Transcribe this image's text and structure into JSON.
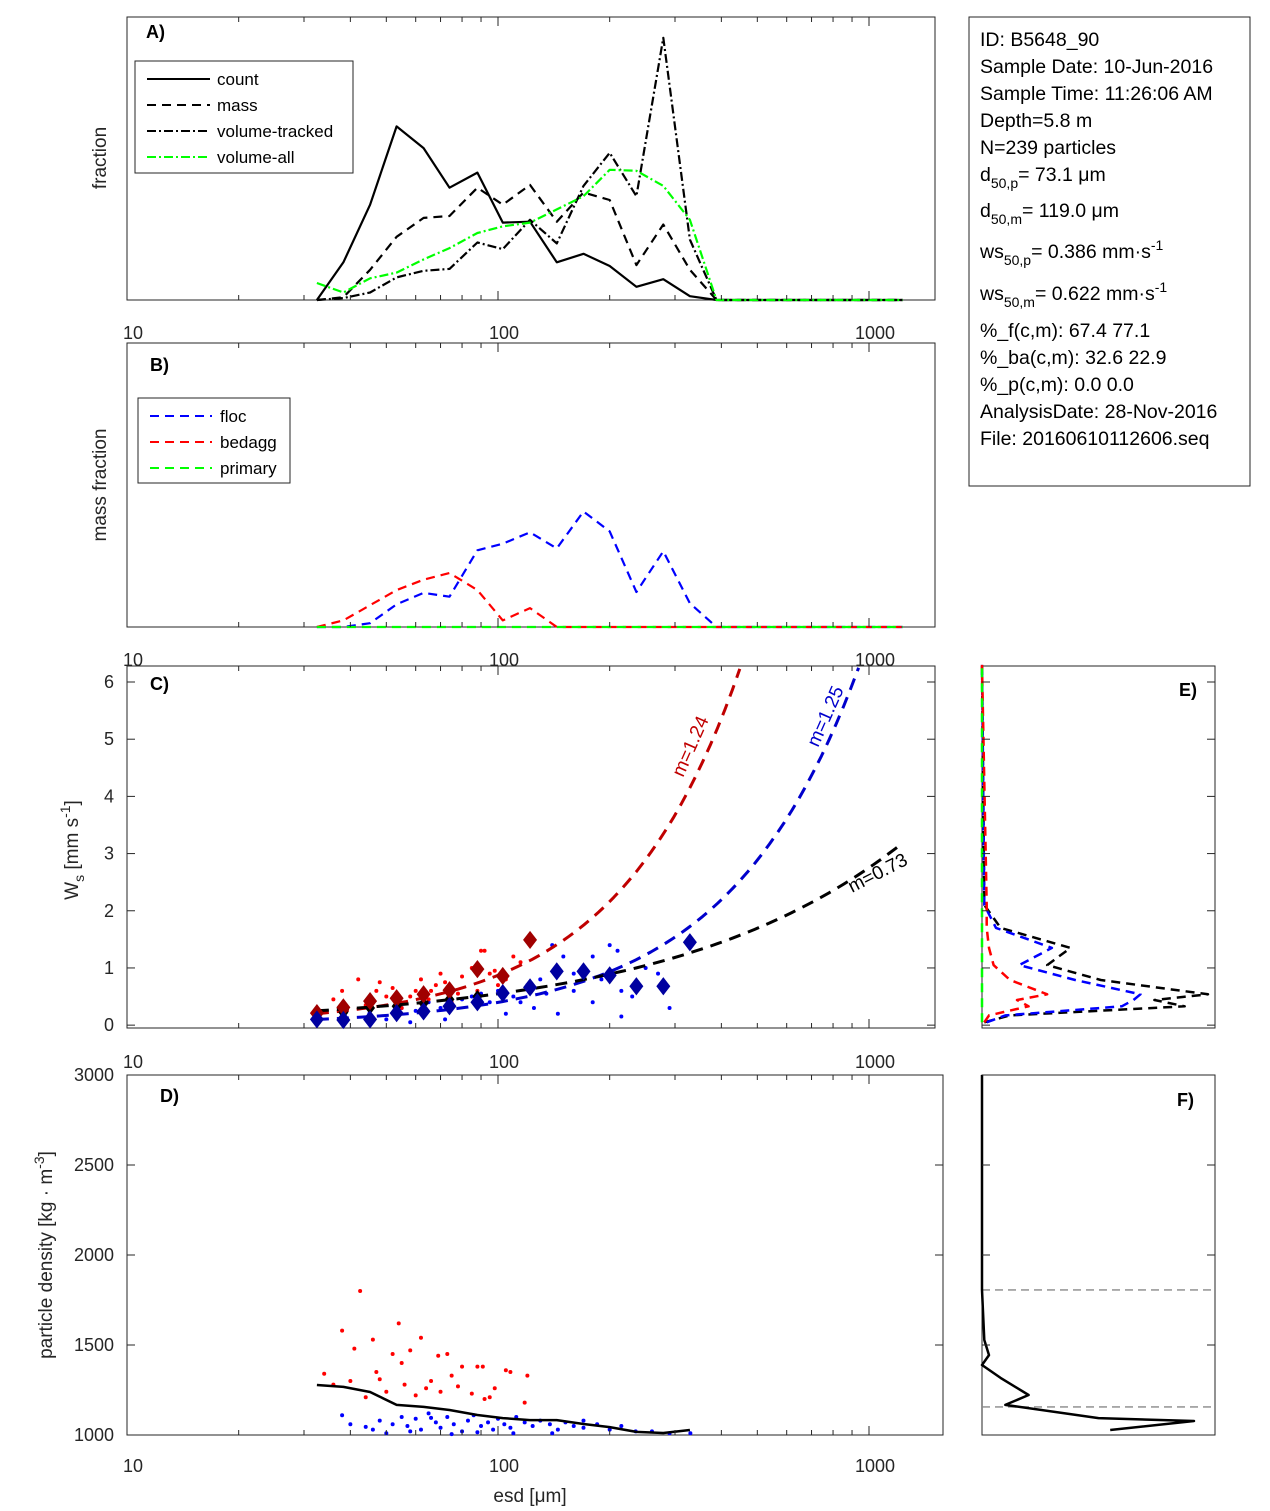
{
  "info_box": {
    "id": "ID: B5648_90",
    "sample_date": "Sample Date: 10-Jun-2016",
    "sample_time": "Sample Time: 11:26:06 AM",
    "depth": "Depth=5.8 m",
    "n": "N=239 particles",
    "d50p": {
      "pre": "d",
      "sub": "50,p",
      "post": "=  73.1 μm"
    },
    "d50m": {
      "pre": "d",
      "sub": "50,m",
      "post": "= 119.0 μm"
    },
    "ws50p": {
      "pre": "ws",
      "sub": "50,p",
      "post": "= 0.386 mm·s",
      "sup": "-1"
    },
    "ws50m": {
      "pre": "ws",
      "sub": "50,m",
      "post": "= 0.622 mm·s",
      "sup": "-1"
    },
    "pf": "%_f(c,m): 67.4 77.1",
    "pba": "%_ba(c,m): 32.6 22.9",
    "pp": "%_p(c,m): 0.0 0.0",
    "analysis_date": "AnalysisDate: 28-Nov-2016",
    "file": "File: 20160610112606.seq"
  },
  "x_tick_labels": [
    "10",
    "100",
    "1000"
  ],
  "chart_data": [
    {
      "panel": "A)",
      "type": "line",
      "ylabel": "fraction",
      "xscale": "log",
      "xlim": [
        10,
        1514
      ],
      "ylim": [
        0,
        0.3
      ],
      "x": [
        32.5,
        38.3,
        45.2,
        53.3,
        63,
        74,
        88,
        103,
        122,
        144,
        170,
        200,
        236,
        279,
        329,
        388,
        458,
        540,
        637,
        751,
        886,
        1045,
        1232
      ],
      "legend_position": "top-left",
      "series": [
        {
          "name": "count",
          "color": "#000000",
          "style": "solid",
          "values": [
            0,
            0.04,
            0.101,
            0.184,
            0.161,
            0.119,
            0.135,
            0.082,
            0.083,
            0.04,
            0.049,
            0.036,
            0.014,
            0.022,
            0.004,
            0,
            0,
            0,
            0,
            0,
            0,
            0,
            0
          ]
        },
        {
          "name": "mass",
          "color": "#000000",
          "style": "dashed",
          "values": [
            0,
            0.003,
            0.032,
            0.067,
            0.087,
            0.089,
            0.119,
            0.101,
            0.122,
            0.083,
            0.114,
            0.106,
            0.037,
            0.08,
            0.032,
            0,
            0,
            0,
            0,
            0,
            0,
            0,
            0
          ]
        },
        {
          "name": "volume-tracked",
          "color": "#000000",
          "style": "dashdot",
          "values": [
            0,
            0.002,
            0.008,
            0.024,
            0.031,
            0.033,
            0.061,
            0.054,
            0.085,
            0.06,
            0.121,
            0.156,
            0.11,
            0.278,
            0.064,
            0,
            0,
            0,
            0,
            0,
            0,
            0,
            0
          ]
        },
        {
          "name": "volume-all",
          "color": "#00ff00",
          "style": "dashdot",
          "values": [
            0.018,
            0.008,
            0.023,
            0.029,
            0.043,
            0.055,
            0.071,
            0.078,
            0.082,
            0.096,
            0.11,
            0.138,
            0.137,
            0.121,
            0.085,
            0,
            0,
            0,
            0,
            0,
            0,
            0,
            0
          ]
        }
      ]
    },
    {
      "panel": "B)",
      "type": "line",
      "ylabel": "mass fraction",
      "xscale": "log",
      "xlim": [
        10,
        1514
      ],
      "ylim": [
        0,
        0.3
      ],
      "x": [
        32.5,
        38.3,
        45.2,
        53.3,
        63,
        74,
        88,
        103,
        122,
        144,
        170,
        200,
        236,
        279,
        329,
        388,
        458,
        540,
        637,
        751,
        886,
        1045,
        1232
      ],
      "legend_position": "top-left",
      "series": [
        {
          "name": "floc",
          "color": "#0000ff",
          "style": "dashed",
          "values": [
            0,
            0,
            0.004,
            0.024,
            0.036,
            0.032,
            0.081,
            0.088,
            0.1,
            0.083,
            0.122,
            0.101,
            0.037,
            0.08,
            0.025,
            0,
            0,
            0,
            0,
            0,
            0,
            0,
            0
          ]
        },
        {
          "name": "bedagg",
          "color": "#ff0000",
          "style": "dashed",
          "values": [
            0,
            0.007,
            0.023,
            0.039,
            0.05,
            0.057,
            0.039,
            0.007,
            0.02,
            0,
            0,
            0,
            0,
            0,
            0,
            0,
            0,
            0,
            0,
            0,
            0,
            0,
            0
          ]
        },
        {
          "name": "primary",
          "color": "#00ff00",
          "style": "dashed",
          "values": [
            0,
            0,
            0,
            0,
            0,
            0,
            0,
            0,
            0,
            0,
            0,
            0,
            0,
            0,
            0,
            0,
            0,
            0,
            0,
            0,
            0,
            0,
            0
          ]
        }
      ]
    },
    {
      "panel": "C)",
      "type": "scatter",
      "ylabel": "W",
      "ylabel_sub": "s",
      "ylabel_post": " [mm s",
      "ylabel_sup": "-1",
      "ylabel_end": "]",
      "xscale": "log",
      "xlim": [
        10,
        1514
      ],
      "ylim": [
        -0.05,
        6.28
      ],
      "yticks": [
        0,
        1,
        2,
        3,
        4,
        5,
        6
      ],
      "bedagg_points": [
        [
          38,
          0.6
        ],
        [
          42,
          0.8
        ],
        [
          48,
          0.75
        ],
        [
          52,
          0.65
        ],
        [
          58,
          0.5
        ],
        [
          62,
          0.8
        ],
        [
          66,
          0.6
        ],
        [
          70,
          0.9
        ],
        [
          72,
          0.75
        ],
        [
          78,
          0.55
        ],
        [
          80,
          0.85
        ],
        [
          85,
          1.0
        ],
        [
          90,
          1.3
        ],
        [
          92,
          1.3
        ],
        [
          95,
          0.9
        ],
        [
          100,
          0.7
        ],
        [
          105,
          0.8
        ],
        [
          110,
          1.2
        ],
        [
          44,
          0.35
        ],
        [
          55,
          0.3
        ],
        [
          36,
          0.45
        ],
        [
          65,
          0.45
        ],
        [
          75,
          0.4
        ],
        [
          50,
          0.5
        ],
        [
          60,
          0.6
        ],
        [
          88,
          0.6
        ],
        [
          98,
          0.95
        ],
        [
          115,
          1.1
        ],
        [
          47,
          0.6
        ],
        [
          68,
          0.7
        ]
      ],
      "floc_points": [
        [
          38,
          0.15
        ],
        [
          45,
          0.2
        ],
        [
          50,
          0.1
        ],
        [
          55,
          0.3
        ],
        [
          60,
          0.25
        ],
        [
          65,
          0.4
        ],
        [
          70,
          0.3
        ],
        [
          75,
          0.35
        ],
        [
          80,
          0.45
        ],
        [
          85,
          0.5
        ],
        [
          90,
          0.55
        ],
        [
          95,
          0.4
        ],
        [
          100,
          0.6
        ],
        [
          110,
          0.5
        ],
        [
          120,
          0.7
        ],
        [
          130,
          0.8
        ],
        [
          140,
          1.4
        ],
        [
          150,
          1.2
        ],
        [
          160,
          0.6
        ],
        [
          170,
          1.0
        ],
        [
          180,
          1.2
        ],
        [
          190,
          0.8
        ],
        [
          200,
          1.4
        ],
        [
          210,
          1.3
        ],
        [
          215,
          0.6
        ],
        [
          230,
          0.5
        ],
        [
          250,
          1.0
        ],
        [
          270,
          0.9
        ],
        [
          290,
          0.3
        ],
        [
          215,
          0.15
        ],
        [
          125,
          0.3
        ],
        [
          145,
          0.2
        ],
        [
          105,
          0.2
        ],
        [
          58,
          0.05
        ],
        [
          72,
          0.1
        ],
        [
          180,
          0.4
        ],
        [
          240,
          0.7
        ],
        [
          160,
          0.9
        ],
        [
          115,
          0.4
        ],
        [
          135,
          0.55
        ]
      ],
      "bedagg_bin_means": [
        [
          32.5,
          0.21
        ],
        [
          38.3,
          0.31
        ],
        [
          45.2,
          0.42
        ],
        [
          53.3,
          0.47
        ],
        [
          63,
          0.54
        ],
        [
          74,
          0.61
        ],
        [
          88,
          0.98
        ],
        [
          103,
          0.86
        ],
        [
          122,
          1.49
        ]
      ],
      "floc_bin_means": [
        [
          32.5,
          0.1
        ],
        [
          38.3,
          0.09
        ],
        [
          45.2,
          0.1
        ],
        [
          53.3,
          0.21
        ],
        [
          63,
          0.24
        ],
        [
          74,
          0.33
        ],
        [
          88,
          0.4
        ],
        [
          103,
          0.56
        ],
        [
          122,
          0.66
        ],
        [
          144,
          0.94
        ],
        [
          170,
          0.94
        ],
        [
          200,
          0.87
        ],
        [
          236,
          0.68
        ],
        [
          279,
          0.68
        ],
        [
          329,
          1.45
        ]
      ],
      "all_bin_means": [
        [
          32.5,
          0.18
        ],
        [
          38.3,
          0.22
        ],
        [
          45.2,
          0.3
        ],
        [
          53.3,
          0.33
        ],
        [
          63,
          0.38
        ],
        [
          74,
          0.45
        ],
        [
          88,
          0.5
        ],
        [
          103,
          0.55
        ],
        [
          122,
          0.65
        ]
      ],
      "fits": [
        {
          "label": "m=1.24",
          "color": "#c00000",
          "coef": 0.2,
          "exponent": 1.31,
          "dmin": 32.5,
          "dmax": 460
        },
        {
          "label": "m=1.25",
          "color": "#0000cc",
          "coef": 0.1,
          "exponent": 1.23,
          "dmin": 32.5,
          "dmax": 960
        },
        {
          "label": "m=0.73",
          "color": "#000000",
          "coef": 0.25,
          "exponent": 0.7,
          "dmin": 32.5,
          "dmax": 1250
        }
      ]
    },
    {
      "panel": "D)",
      "type": "scatter",
      "ylabel": "particle density [kg · m",
      "ylabel_sup": "-3",
      "ylabel_end": "]",
      "xlabel": "esd [μm]",
      "xscale": "log",
      "xlim": [
        10,
        1560
      ],
      "ylim": [
        1000,
        3000
      ],
      "yticks": [
        1000,
        1500,
        2000,
        2500,
        3000
      ],
      "bedagg_points": [
        [
          42.5,
          1800
        ],
        [
          38,
          1580
        ],
        [
          54,
          1620
        ],
        [
          46,
          1530
        ],
        [
          41,
          1480
        ],
        [
          58,
          1470
        ],
        [
          52,
          1450
        ],
        [
          62,
          1540
        ],
        [
          69,
          1440
        ],
        [
          73,
          1450
        ],
        [
          80,
          1380
        ],
        [
          88,
          1380
        ],
        [
          91,
          1380
        ],
        [
          105,
          1360
        ],
        [
          108,
          1350
        ],
        [
          120,
          1330
        ],
        [
          34,
          1340
        ],
        [
          40,
          1300
        ],
        [
          48,
          1310
        ],
        [
          56,
          1280
        ],
        [
          66,
          1300
        ],
        [
          75,
          1330
        ],
        [
          50,
          1240
        ],
        [
          60,
          1220
        ],
        [
          44,
          1210
        ],
        [
          70,
          1240
        ],
        [
          85,
          1230
        ],
        [
          95,
          1210
        ],
        [
          118,
          1180
        ],
        [
          98,
          1260
        ],
        [
          64,
          1260
        ],
        [
          78,
          1270
        ],
        [
          92,
          1200
        ],
        [
          36,
          1280
        ],
        [
          47,
          1350
        ],
        [
          55,
          1400
        ]
      ],
      "floc_points": [
        [
          38,
          1110
        ],
        [
          40,
          1060
        ],
        [
          46,
          1030
        ],
        [
          48,
          1080
        ],
        [
          50,
          1010
        ],
        [
          52,
          1060
        ],
        [
          55,
          1100
        ],
        [
          57,
          1050
        ],
        [
          60,
          1090
        ],
        [
          62,
          1030
        ],
        [
          65,
          1120
        ],
        [
          68,
          1070
        ],
        [
          70,
          1040
        ],
        [
          73,
          1100
        ],
        [
          76,
          1060
        ],
        [
          80,
          1020
        ],
        [
          83,
          1080
        ],
        [
          86,
          1110
        ],
        [
          90,
          1050
        ],
        [
          94,
          1070
        ],
        [
          97,
          1030
        ],
        [
          100,
          1090
        ],
        [
          104,
          1060
        ],
        [
          108,
          1040
        ],
        [
          112,
          1100
        ],
        [
          118,
          1070
        ],
        [
          124,
          1050
        ],
        [
          130,
          1080
        ],
        [
          138,
          1060
        ],
        [
          145,
          1030
        ],
        [
          152,
          1070
        ],
        [
          160,
          1050
        ],
        [
          170,
          1040
        ],
        [
          185,
          1060
        ],
        [
          200,
          1030
        ],
        [
          215,
          1050
        ],
        [
          235,
          1020
        ],
        [
          260,
          1020
        ],
        [
          290,
          1010
        ],
        [
          330,
          1010
        ],
        [
          110,
          1010
        ],
        [
          170,
          1080
        ],
        [
          58,
          1020
        ],
        [
          75,
          1005
        ],
        [
          44,
          1045
        ],
        [
          66,
          1095
        ],
        [
          88,
          1015
        ],
        [
          140,
          1010
        ]
      ],
      "mean_line": [
        [
          32.5,
          1278
        ],
        [
          38.3,
          1267
        ],
        [
          45.2,
          1239
        ],
        [
          53.3,
          1167
        ],
        [
          63,
          1156
        ],
        [
          74,
          1139
        ],
        [
          88,
          1111
        ],
        [
          103,
          1094
        ],
        [
          122,
          1083
        ],
        [
          144,
          1083
        ],
        [
          170,
          1061
        ],
        [
          200,
          1044
        ],
        [
          236,
          1017
        ],
        [
          279,
          1011
        ],
        [
          329,
          1028
        ]
      ]
    },
    {
      "panel": "E)",
      "type": "line",
      "orientation": "vertical-profile",
      "xlim": [
        0,
        1
      ],
      "ylim": [
        -0.05,
        6.28
      ],
      "ws": [
        0.05,
        0.17,
        0.33,
        0.44,
        0.54,
        0.79,
        1.05,
        1.35,
        1.7,
        2.1,
        6.3
      ],
      "series": [
        {
          "name": "total",
          "color": "#000000",
          "values": [
            0.01,
            0.12,
            0.87,
            0.74,
            0.97,
            0.51,
            0.28,
            0.38,
            0.08,
            0.01,
            0
          ]
        },
        {
          "name": "floc",
          "color": "#0000ff",
          "values": [
            0.02,
            0.1,
            0.6,
            0.65,
            0.68,
            0.4,
            0.16,
            0.3,
            0.06,
            0.01,
            0
          ]
        },
        {
          "name": "bedagg",
          "color": "#ff0000",
          "values": [
            0.01,
            0.03,
            0.2,
            0.15,
            0.28,
            0.12,
            0.05,
            0.03,
            0.02,
            0.02,
            0
          ]
        },
        {
          "name": "primary",
          "color": "#00ff00",
          "values": [
            0,
            0,
            0,
            0,
            0,
            0,
            0,
            0,
            0,
            0,
            0
          ]
        }
      ]
    },
    {
      "panel": "F)",
      "type": "line",
      "orientation": "vertical-profile",
      "xlim": [
        0,
        1
      ],
      "ylim": [
        1000,
        3000
      ],
      "density": [
        1028,
        1078,
        1094,
        1167,
        1222,
        1317,
        1389,
        1444,
        1528,
        1806,
        3000
      ],
      "series": [
        {
          "name": "total",
          "color": "#000000",
          "values": [
            0.55,
            0.91,
            0.5,
            0.1,
            0.2,
            0.08,
            0.0,
            0.03,
            0.01,
            0.0,
            0.0
          ]
        }
      ],
      "reference_lines": [
        1806,
        1156
      ]
    }
  ]
}
